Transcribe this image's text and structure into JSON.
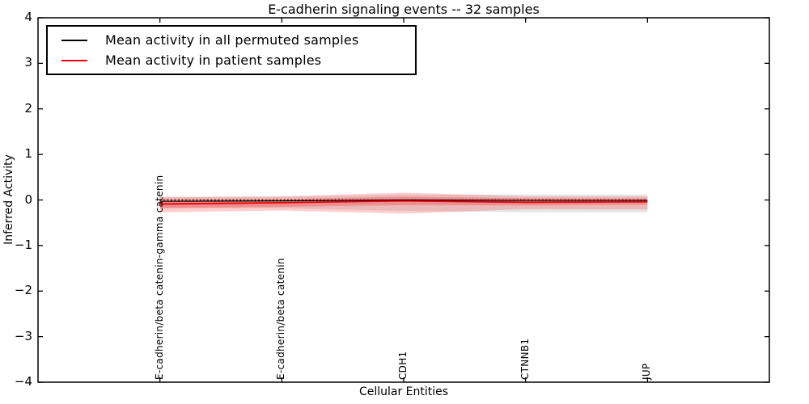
{
  "chart_data": {
    "type": "line",
    "title": "E-cadherin signaling events -- 32 samples",
    "xlabel": "Cellular Entities",
    "ylabel": "Inferred Activity",
    "ylim": [
      -4,
      4
    ],
    "xlim_categories": [
      -1,
      5
    ],
    "grid": false,
    "yticks": [
      {
        "value": 4,
        "label": "4"
      },
      {
        "value": 3,
        "label": "3"
      },
      {
        "value": 2,
        "label": "2"
      },
      {
        "value": 1,
        "label": "1"
      },
      {
        "value": 0,
        "label": "0"
      },
      {
        "value": -1,
        "label": "−1"
      },
      {
        "value": -2,
        "label": "−2"
      },
      {
        "value": -3,
        "label": "−3"
      },
      {
        "value": -4,
        "label": "−4"
      }
    ],
    "categories": [
      "E-cadherin/beta catenin-gamma catenin",
      "E-cadherin/beta catenin",
      "CDH1",
      "CTNNB1",
      "JUP"
    ],
    "legend": {
      "position": "upper left",
      "entries": [
        {
          "label": "Mean activity in all permuted samples",
          "color": "#000000"
        },
        {
          "label": "Mean activity in patient samples",
          "color": "#ff0000"
        }
      ]
    },
    "reference_line": {
      "value": 0,
      "style": "dotted",
      "color": "#000000"
    },
    "series": [
      {
        "name": "Mean activity in all permuted samples",
        "color": "#000000",
        "style": "solid",
        "width": 1.2,
        "values": [
          -0.03,
          -0.02,
          0.0,
          -0.01,
          -0.01
        ]
      },
      {
        "name": "Mean activity in patient samples",
        "color": "#e60000",
        "style": "solid",
        "width": 1.8,
        "values": [
          -0.09,
          -0.06,
          -0.02,
          -0.05,
          -0.04
        ]
      }
    ],
    "bands": [
      {
        "name": "permuted-samples-spread",
        "color": "#000000",
        "alpha": 0.1,
        "upper": [
          0.06,
          0.07,
          0.12,
          0.12,
          0.12
        ],
        "lower": [
          -0.18,
          -0.18,
          -0.24,
          -0.27,
          -0.27
        ]
      },
      {
        "name": "patient-samples-spread-outer",
        "color": "#ff2222",
        "alpha": 0.22,
        "upper": [
          0.07,
          0.08,
          0.16,
          0.08,
          0.08
        ],
        "lower": [
          -0.27,
          -0.23,
          -0.3,
          -0.2,
          -0.21
        ]
      },
      {
        "name": "patient-samples-spread-inner",
        "color": "#ff2222",
        "alpha": 0.28,
        "upper": [
          0.02,
          0.02,
          0.07,
          0.04,
          0.035
        ],
        "lower": [
          -0.18,
          -0.15,
          -0.11,
          -0.12,
          -0.105
        ]
      }
    ]
  }
}
